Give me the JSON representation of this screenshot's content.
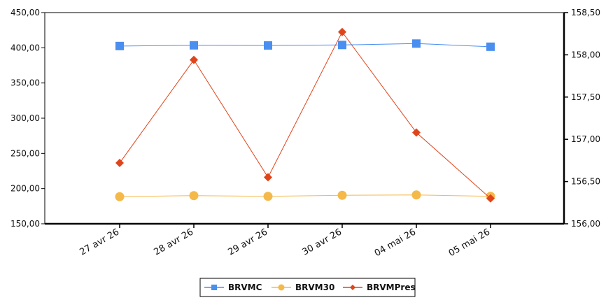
{
  "chart_data": {
    "type": "line",
    "categories": [
      "27 avr 26",
      "28 avr 26",
      "29 avr 26",
      "30 avr 26",
      "04 mai 26",
      "05 mai 26"
    ],
    "y_left": {
      "ylim": [
        150,
        450
      ],
      "ticks": [
        "450,00",
        "400,00",
        "350,00",
        "300,00",
        "250,00",
        "200,00",
        "150,00"
      ]
    },
    "y_right": {
      "ylim": [
        156,
        158.5
      ],
      "ticks": [
        "158,50",
        "158,00",
        "157,50",
        "157,00",
        "156,50",
        "156,00"
      ]
    },
    "series": [
      {
        "name": "BRVMC",
        "axis": "left",
        "color": "#4a8ef0",
        "marker": "square",
        "values": [
          402.5,
          403.5,
          403.3,
          404.0,
          406.0,
          401.5
        ]
      },
      {
        "name": "BRVM30",
        "axis": "left",
        "color": "#f5b94a",
        "marker": "circle",
        "values": [
          188.5,
          190.0,
          189.0,
          190.5,
          191.0,
          189.0
        ]
      },
      {
        "name": "BRVMPres",
        "axis": "right",
        "color": "#e0441a",
        "marker": "diamond",
        "values": [
          156.72,
          157.94,
          156.55,
          158.27,
          157.08,
          156.3
        ]
      }
    ],
    "legend_position": "bottom",
    "grid": false
  }
}
